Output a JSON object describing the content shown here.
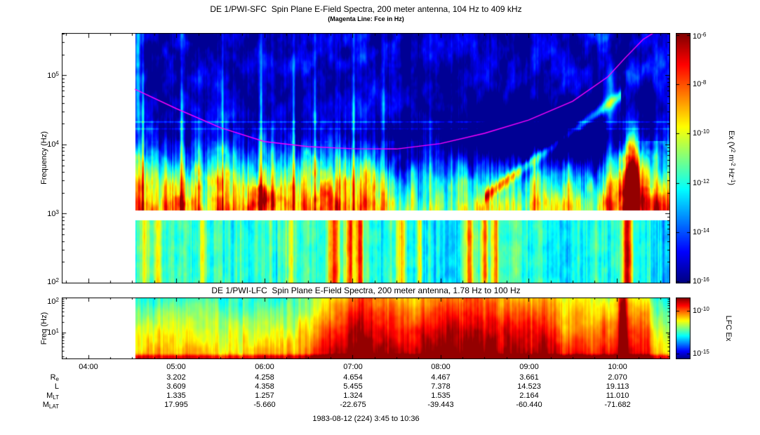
{
  "colors": {
    "fce_line": "#ff00ff",
    "frame": "#000000",
    "background": "#ffffff"
  },
  "sfc": {
    "title": "DE 1/PWI-SFC  Spin Plane E-Field Spectra, 200 meter antenna, 104 Hz to 409 kHz",
    "subtitle": "(Magenta Line: Fce in Hz)",
    "ylabel": "Frequency (Hz)",
    "yticks": [
      {
        "base": "10",
        "exp": "5"
      },
      {
        "base": "10",
        "exp": "4"
      },
      {
        "base": "10",
        "exp": "3"
      },
      {
        "base": "10",
        "exp": "2"
      }
    ],
    "colorbar": {
      "label": {
        "p0": "Ex (V",
        "s0": "2",
        "p1": " m",
        "s1": "-2",
        "p2": " Hz",
        "s2": "-1",
        "p3": ")"
      },
      "ticks": [
        {
          "base": "10",
          "exp": "-6"
        },
        {
          "base": "10",
          "exp": "-8"
        },
        {
          "base": "10",
          "exp": "-10"
        },
        {
          "base": "10",
          "exp": "-12"
        },
        {
          "base": "10",
          "exp": "-14"
        },
        {
          "base": "10",
          "exp": "-16"
        }
      ]
    }
  },
  "lfc": {
    "title": "DE 1/PWI-LFC  Spin Plane E-Field Spectra, 200 meter antenna, 1.78 Hz to 100 Hz",
    "ylabel": "Freq (Hz)",
    "yticks": [
      {
        "base": "10",
        "exp": "2"
      },
      {
        "base": "10",
        "exp": "1"
      }
    ],
    "colorbar": {
      "label": "LFC Ex",
      "ticks": [
        {
          "base": "10",
          "exp": "-10"
        },
        {
          "base": "10",
          "exp": "-15"
        }
      ]
    }
  },
  "xaxis": {
    "labels": [
      "04:00",
      "05:00",
      "06:00",
      "07:00",
      "08:00",
      "09:00",
      "10:00"
    ]
  },
  "ephemeris": {
    "rows": [
      {
        "label": {
          "base": "R",
          "sub": "e"
        },
        "values": [
          "3.202",
          "4.258",
          "4.654",
          "4.467",
          "3.661",
          "2.070"
        ]
      },
      {
        "label": {
          "base": "L",
          "sub": ""
        },
        "values": [
          "3.609",
          "4.358",
          "5.455",
          "7.378",
          "14.523",
          "19.113"
        ]
      },
      {
        "label": {
          "base": "M",
          "sub": "LT"
        },
        "values": [
          "1.335",
          "1.257",
          "1.324",
          "1.535",
          "2.164",
          "11.010"
        ]
      },
      {
        "label": {
          "base": "M",
          "sub": "LAT"
        },
        "values": [
          "17.995",
          "-5.660",
          "-22.675",
          "-39.443",
          "-60.440",
          "-71.682"
        ]
      }
    ]
  },
  "caption": "1983-08-12 (224) 3:45 to 10:36",
  "chart_data": [
    {
      "type": "heatmap",
      "name": "sfc-spectrogram",
      "title": "DE 1/PWI-SFC  Spin Plane E-Field Spectra, 200 meter antenna, 104 Hz to 409 kHz",
      "x_axis": {
        "unit": "UT hours",
        "range": [
          3.7,
          10.6
        ],
        "tick_hours": [
          4,
          5,
          6,
          7,
          8,
          9,
          10
        ],
        "tick_labels": [
          "04:00",
          "05:00",
          "06:00",
          "07:00",
          "08:00",
          "09:00",
          "10:00"
        ]
      },
      "data_start_hour": 4.53,
      "data_end_hour": 10.6,
      "y_axis": {
        "label": "Frequency (Hz)",
        "scale": "log",
        "range_hz": [
          100,
          409000
        ],
        "tick_hz": [
          100000,
          10000,
          1000,
          100
        ]
      },
      "receiver_gap_hz": [
        810,
        1110
      ],
      "colorbar": {
        "label": "Ex (V^2 m^-2 Hz^-1)",
        "scale": "log",
        "range": [
          1e-16,
          1e-06
        ],
        "tick_values": [
          1e-06,
          1e-08,
          1e-10,
          1e-12,
          1e-14,
          1e-16
        ],
        "colormap": "jet"
      },
      "fce_line": {
        "label": "Fce in Hz",
        "color": "#ff00ff",
        "points_hour_hz": [
          [
            4.53,
            63000
          ],
          [
            5.0,
            33000
          ],
          [
            5.5,
            17500
          ],
          [
            6.0,
            11000
          ],
          [
            6.5,
            9300
          ],
          [
            7.0,
            8700
          ],
          [
            7.5,
            8600
          ],
          [
            8.0,
            10300
          ],
          [
            8.5,
            14500
          ],
          [
            9.0,
            22500
          ],
          [
            9.5,
            42000
          ],
          [
            9.9,
            95000
          ],
          [
            10.1,
            180000
          ],
          [
            10.3,
            330000
          ],
          [
            10.42,
            410000
          ]
        ]
      }
    },
    {
      "type": "heatmap",
      "name": "lfc-spectrogram",
      "title": "DE 1/PWI-LFC  Spin Plane E-Field Spectra, 200 meter antenna, 1.78 Hz to 100 Hz",
      "x_axis": {
        "unit": "UT hours",
        "range": [
          3.7,
          10.6
        ],
        "tick_hours": [
          4,
          5,
          6,
          7,
          8,
          9,
          10
        ]
      },
      "data_start_hour": 4.53,
      "y_axis": {
        "label": "Freq (Hz)",
        "scale": "log",
        "range_hz": [
          1.78,
          100
        ],
        "tick_hz": [
          100,
          10
        ]
      },
      "colorbar": {
        "label": "LFC Ex",
        "scale": "log",
        "tick_values": [
          1e-10,
          1e-15
        ],
        "colormap": "jet"
      }
    },
    {
      "type": "table",
      "name": "ephemeris",
      "columns": [
        "05:00",
        "06:00",
        "07:00",
        "08:00",
        "09:00",
        "10:00"
      ],
      "rows": [
        {
          "label": "Re",
          "values": [
            3.202,
            4.258,
            4.654,
            4.467,
            3.661,
            2.07
          ]
        },
        {
          "label": "L",
          "values": [
            3.609,
            4.358,
            5.455,
            7.378,
            14.523,
            19.113
          ]
        },
        {
          "label": "MLT",
          "values": [
            1.335,
            1.257,
            1.324,
            1.535,
            2.164,
            11.01
          ]
        },
        {
          "label": "MLAT",
          "values": [
            17.995,
            -5.66,
            -22.675,
            -39.443,
            -60.44,
            -71.682
          ]
        }
      ]
    }
  ]
}
